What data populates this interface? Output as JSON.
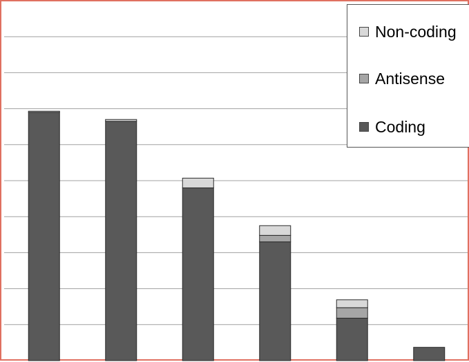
{
  "chart_data": {
    "type": "bar",
    "stacked": true,
    "categories": [
      "",
      "",
      "",
      "",
      "",
      ""
    ],
    "series": [
      {
        "name": "Coding",
        "color": "#595959",
        "values": [
          6.9,
          6.65,
          4.8,
          3.3,
          1.18,
          0.37
        ]
      },
      {
        "name": "Antisense",
        "color": "#a6a6a6",
        "values": [
          0.0,
          0.0,
          0.0,
          0.18,
          0.29,
          0.0
        ]
      },
      {
        "name": "Non-coding",
        "color": "#d9d9d9",
        "values": [
          0.03,
          0.05,
          0.27,
          0.27,
          0.22,
          0.0
        ]
      }
    ],
    "ylim": [
      0,
      10
    ],
    "grid": true,
    "legend": "top-right",
    "title": "",
    "xlabel": "",
    "ylabel": ""
  }
}
